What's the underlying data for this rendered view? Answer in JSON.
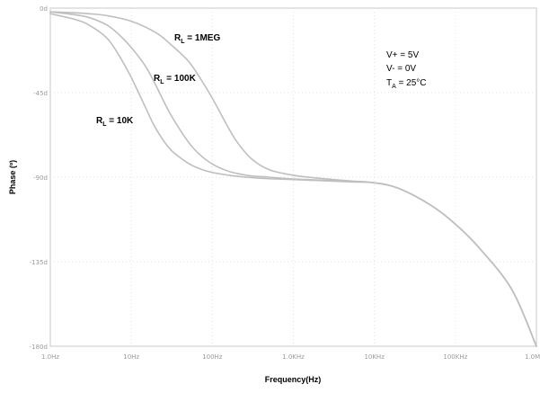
{
  "chart_data": {
    "type": "line",
    "title": "",
    "xlabel": "Frequency(Hz)",
    "ylabel": "Phase (º)",
    "x_scale": "log",
    "xlim": [
      1,
      1000000
    ],
    "ylim": [
      -180,
      0
    ],
    "x_ticks": [
      1,
      10,
      100,
      1000,
      10000,
      100000,
      1000000
    ],
    "x_tick_labels": [
      "1.0Hz",
      "10Hz",
      "100Hz",
      "1.0KHz",
      "10KHz",
      "100KHz",
      "1.0MHz"
    ],
    "y_ticks": [
      0,
      -45,
      -90,
      -135,
      -180
    ],
    "y_tick_labels": [
      "0d",
      "-45d",
      "-90d",
      "-135d",
      "-180d"
    ],
    "grid": true,
    "line_color": "#bfbfbf",
    "series": [
      {
        "name": "RL = 1MEG",
        "label_main": "R",
        "label_sub": "L",
        "label_rest": " = 1MEG",
        "x": [
          1,
          2,
          3,
          5,
          10,
          20,
          30,
          50,
          70,
          100,
          150,
          200,
          300,
          500,
          1000,
          2000,
          5000,
          10000,
          20000,
          50000,
          100000,
          200000,
          500000,
          1000000
        ],
        "y": [
          -2,
          -2.5,
          -3,
          -4,
          -7,
          -13,
          -19,
          -28,
          -37,
          -48,
          -62,
          -71,
          -80,
          -86,
          -89,
          -90.5,
          -92,
          -93,
          -96,
          -105,
          -115,
          -128,
          -150,
          -180
        ]
      },
      {
        "name": "RL = 100K",
        "label_main": "R",
        "label_sub": "L",
        "label_rest": " = 100K",
        "x": [
          1,
          2,
          3,
          5,
          7,
          10,
          15,
          20,
          30,
          50,
          70,
          100,
          150,
          200,
          300,
          500,
          1000,
          2000,
          5000,
          10000,
          20000,
          50000,
          100000,
          200000,
          500000,
          1000000
        ],
        "y": [
          -2,
          -3.5,
          -5,
          -9,
          -14,
          -21,
          -31,
          -41,
          -56,
          -71,
          -78,
          -83,
          -86.5,
          -88,
          -89.3,
          -90,
          -91,
          -91.5,
          -92.3,
          -93,
          -96,
          -105,
          -115,
          -128,
          -150,
          -180
        ]
      },
      {
        "name": "RL = 10K",
        "label_main": "R",
        "label_sub": "L",
        "label_rest": " = 10K",
        "x": [
          1,
          2,
          3,
          5,
          7,
          10,
          15,
          20,
          30,
          50,
          70,
          100,
          150,
          200,
          300,
          500,
          1000,
          2000,
          5000,
          10000,
          20000,
          50000,
          100000,
          200000,
          500000,
          1000000
        ],
        "y": [
          -3,
          -6,
          -9,
          -16,
          -25,
          -37,
          -53,
          -64,
          -75,
          -82.5,
          -85.5,
          -87.5,
          -88.8,
          -89.5,
          -90.2,
          -90.8,
          -91.3,
          -91.8,
          -92.5,
          -93,
          -96,
          -105,
          -115,
          -128,
          -150,
          -180
        ]
      }
    ],
    "conditions": {
      "vplus": "V+ = 5V",
      "vminus": "V- = 0V",
      "ta_main": "T",
      "ta_sub": "A",
      "ta_rest": " = 25°C"
    }
  }
}
